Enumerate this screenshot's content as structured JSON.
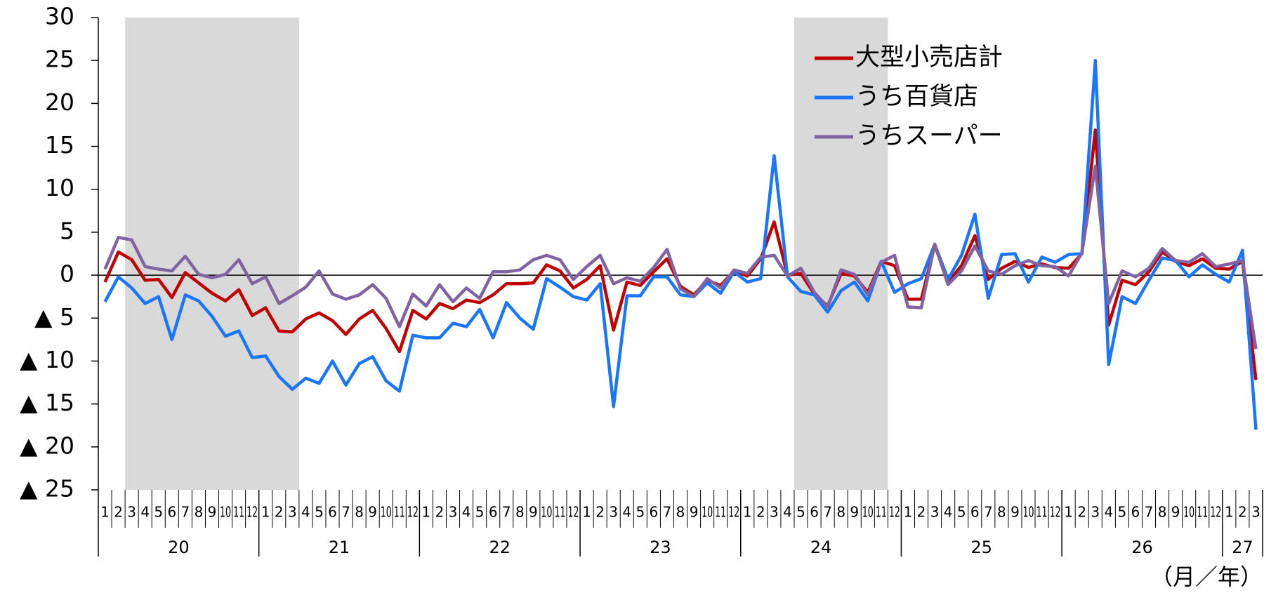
{
  "chart_data": {
    "type": "line",
    "categories": [
      "1",
      "2",
      "3",
      "4",
      "5",
      "6",
      "7",
      "8",
      "9",
      "10",
      "11",
      "12",
      "1",
      "2",
      "3",
      "4",
      "5",
      "6",
      "7",
      "8",
      "9",
      "10",
      "11",
      "12",
      "1",
      "2",
      "3",
      "4",
      "5",
      "6",
      "7",
      "8",
      "9",
      "10",
      "11",
      "12",
      "1",
      "2",
      "3",
      "4",
      "5",
      "6",
      "7",
      "8",
      "9",
      "10",
      "11",
      "12",
      "1",
      "2",
      "3",
      "4",
      "5",
      "6",
      "7",
      "8",
      "9",
      "10",
      "11",
      "12",
      "1",
      "2",
      "3",
      "4",
      "5",
      "6",
      "7",
      "8",
      "9",
      "10",
      "11",
      "12",
      "1",
      "2",
      "3",
      "4",
      "5",
      "6",
      "7",
      "8",
      "9",
      "10",
      "11",
      "12",
      "1",
      "2",
      "3"
    ],
    "year_labels": [
      "20",
      "21",
      "22",
      "23",
      "24",
      "25",
      "26",
      "27"
    ],
    "x_unit_label": "（月／年）",
    "ylim": [
      -25,
      30
    ],
    "yticks": [
      30,
      25,
      20,
      15,
      10,
      5,
      0,
      {
        "value": -5,
        "label": "▲ 5"
      },
      {
        "value": -10,
        "label": "▲ 10"
      },
      {
        "value": -15,
        "label": "▲ 15"
      },
      {
        "value": -20,
        "label": "▲ 20"
      },
      {
        "value": -25,
        "label": "▲ 25"
      }
    ],
    "grid": false,
    "zero_line": true,
    "legend": "top-right",
    "shaded": [
      [
        2,
        14
      ],
      [
        52,
        58
      ]
    ],
    "shade_color": "#d9d9d9",
    "series": [
      {
        "name": "大型小売店計",
        "color": "#c00000",
        "values": [
          -0.8,
          2.7,
          1.8,
          -0.6,
          -0.5,
          -2.6,
          0.3,
          -0.9,
          -2.1,
          -3.0,
          -1.7,
          -4.7,
          -3.8,
          -6.5,
          -6.6,
          -5.1,
          -4.4,
          -5.3,
          -6.9,
          -5.1,
          -4.1,
          -6.2,
          -8.9,
          -4.1,
          -5.1,
          -3.3,
          -3.9,
          -2.9,
          -3.2,
          -2.3,
          -1.0,
          -1.0,
          -0.9,
          1.2,
          0.5,
          -1.5,
          -0.5,
          1.1,
          -6.4,
          -0.8,
          -1.2,
          0.4,
          1.9,
          -1.3,
          -2.3,
          -0.6,
          -1.2,
          0.5,
          -0.1,
          1.9,
          6.2,
          0.0,
          0.2,
          -2.2,
          -3.6,
          0.2,
          -0.1,
          -2.0,
          1.6,
          1.1,
          -2.8,
          -2.8,
          3.5,
          -0.8,
          1.1,
          4.6,
          -0.5,
          0.8,
          1.6,
          0.9,
          1.3,
          0.9,
          0.8,
          2.5,
          16.9,
          -5.8,
          -0.6,
          -1.1,
          0.4,
          2.7,
          1.6,
          1.1,
          1.9,
          0.8,
          0.7,
          1.6,
          -12.2
        ]
      },
      {
        "name": "うち百貨店",
        "color": "#1a75ff",
        "values": [
          -3.1,
          -0.2,
          -1.5,
          -3.3,
          -2.5,
          -7.5,
          -2.3,
          -3.0,
          -4.8,
          -7.1,
          -6.5,
          -9.6,
          -9.4,
          -11.8,
          -13.3,
          -12.0,
          -12.6,
          -10.0,
          -12.8,
          -10.3,
          -9.5,
          -12.3,
          -13.5,
          -7.0,
          -7.3,
          -7.3,
          -5.6,
          -6.0,
          -4.0,
          -7.3,
          -3.2,
          -5.0,
          -6.3,
          -0.4,
          -1.4,
          -2.5,
          -2.9,
          -1.0,
          -15.3,
          -2.4,
          -2.4,
          -0.2,
          -0.2,
          -2.3,
          -2.5,
          -0.9,
          -2.1,
          0.4,
          -0.8,
          -0.4,
          13.9,
          -0.2,
          -1.9,
          -2.3,
          -4.3,
          -1.8,
          -0.8,
          -3.0,
          1.6,
          -2.0,
          -1.0,
          -0.4,
          3.6,
          -0.5,
          2.3,
          7.1,
          -2.7,
          2.4,
          2.5,
          -0.8,
          2.1,
          1.5,
          2.4,
          2.5,
          25.0,
          -10.4,
          -2.5,
          -3.3,
          -0.6,
          2.0,
          1.7,
          -0.2,
          1.2,
          0.1,
          -0.8,
          2.9,
          -18.0
        ]
      },
      {
        "name": "うちスーパー",
        "color": "#8064a2",
        "values": [
          0.7,
          4.4,
          4.1,
          1.0,
          0.7,
          0.5,
          2.2,
          0.1,
          -0.3,
          0.1,
          1.8,
          -1.0,
          -0.2,
          -3.3,
          -2.4,
          -1.4,
          0.5,
          -2.2,
          -2.8,
          -2.3,
          -1.1,
          -2.7,
          -6.0,
          -2.2,
          -3.6,
          -1.1,
          -3.1,
          -1.5,
          -2.7,
          0.4,
          0.4,
          0.6,
          1.8,
          2.3,
          1.8,
          -0.5,
          1.0,
          2.3,
          -1.0,
          -0.3,
          -0.7,
          0.9,
          3.0,
          -1.6,
          -2.5,
          -0.4,
          -1.5,
          0.6,
          0.2,
          2.1,
          2.3,
          -0.1,
          0.8,
          -2.0,
          -3.7,
          0.6,
          0.1,
          -2.3,
          1.5,
          2.3,
          -3.7,
          -3.8,
          3.6,
          -1.1,
          0.5,
          3.4,
          0.5,
          0.1,
          1.1,
          1.7,
          1.1,
          1.0,
          -0.1,
          2.6,
          12.7,
          -3.3,
          0.5,
          -0.2,
          0.8,
          3.1,
          1.7,
          1.5,
          2.5,
          1.0,
          1.3,
          1.7,
          -8.6
        ]
      }
    ]
  }
}
